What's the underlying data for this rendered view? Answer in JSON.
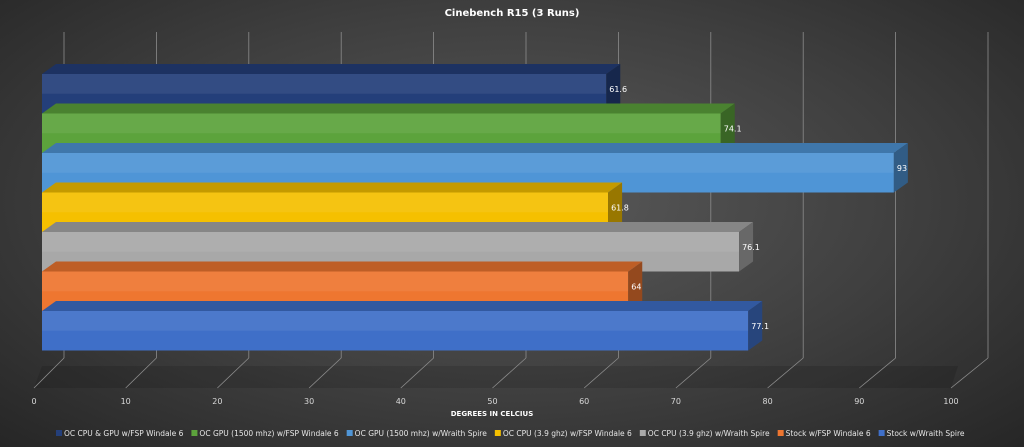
{
  "chart_data": {
    "type": "bar",
    "orientation": "horizontal",
    "title": "Cinebench  R15 (3 Runs)",
    "xlabel": "DEGREES IN CELCIUS",
    "ylabel": "",
    "xlim": [
      0,
      100
    ],
    "x_ticks": [
      "0",
      "10",
      "20",
      "30",
      "40",
      "50",
      "60",
      "70",
      "80",
      "90",
      "100"
    ],
    "grid": true,
    "legend_position": "bottom",
    "series": [
      {
        "name": "OC CPU & GPU w/FSP Windale 6",
        "value": 61.6,
        "label": "61.6",
        "color": "#243f7a"
      },
      {
        "name": "OC GPU (1500 mhz) w/FSP Windale 6",
        "value": 74.1,
        "label": "74.1",
        "color": "#5ca33c"
      },
      {
        "name": "OC GPU (1500 mhz) w/Wraith Spire",
        "value": 93,
        "label": "93",
        "color": "#4f95d6"
      },
      {
        "name": "OC CPU (3.9 ghz) w/FSP Windale 6",
        "value": 61.8,
        "label": "61.8",
        "color": "#f5c000"
      },
      {
        "name": "OC CPU (3.9 ghz) w/Wraith Spire",
        "value": 76.1,
        "label": "76.1",
        "color": "#a8a8a8"
      },
      {
        "name": "Stock w/FSP Windale 6",
        "value": 64,
        "label": "64",
        "color": "#ee7630"
      },
      {
        "name": "Stock w/Wraith Spire",
        "value": 77.1,
        "label": "77.1",
        "color": "#3f6fc8"
      }
    ]
  }
}
